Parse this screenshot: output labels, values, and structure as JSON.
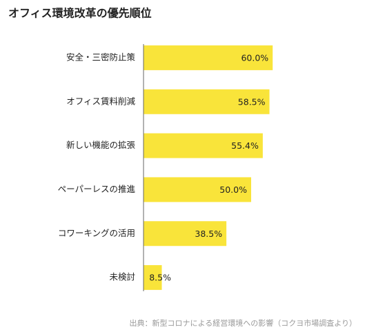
{
  "chart_data": {
    "type": "bar",
    "orientation": "horizontal",
    "title": "オフィス環境改革の優先順位",
    "categories": [
      "安全・三密防止策",
      "オフィス賃料削減",
      "新しい機能の拡張",
      "ペーパーレスの推進",
      "コワーキングの活用",
      "未検討"
    ],
    "values": [
      60.0,
      58.5,
      55.4,
      50.0,
      38.5,
      8.5
    ],
    "value_labels": [
      "60.0%",
      "58.5%",
      "55.4%",
      "50.0%",
      "38.5%",
      "8.5%"
    ],
    "color": "#f9e43a",
    "xlim": [
      0,
      100
    ],
    "source": "出典：新型コロナによる経営環境への影響（コクヨ市場調査より）"
  }
}
